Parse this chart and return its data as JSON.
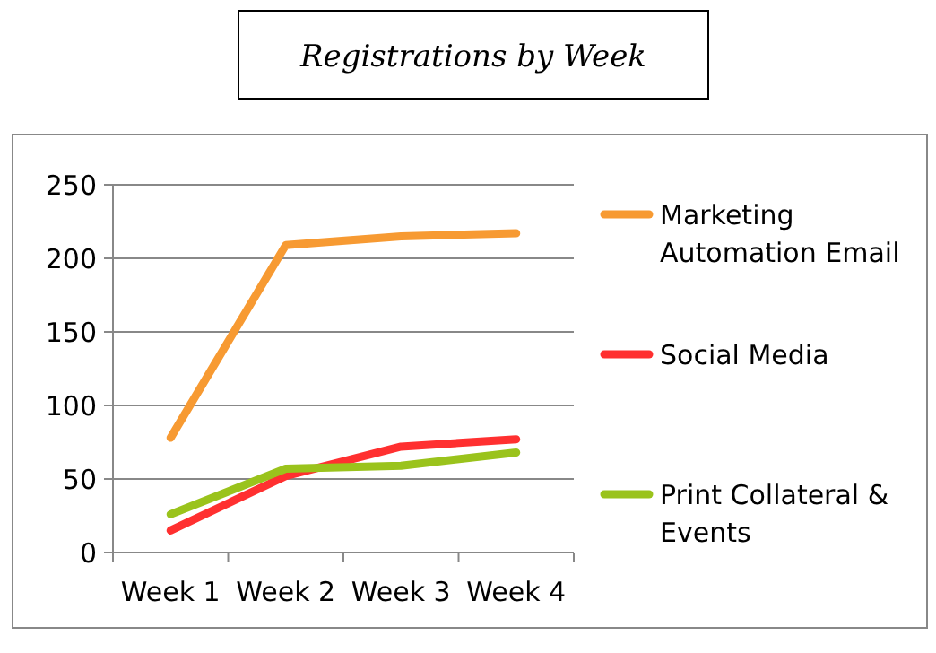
{
  "chart_data": {
    "type": "line",
    "title": "Registrations by Week",
    "categories": [
      "Week 1",
      "Week 2",
      "Week 3",
      "Week 4"
    ],
    "series": [
      {
        "name": "Marketing Automation Email",
        "color": "#f79a32",
        "values": [
          78,
          209,
          215,
          217
        ]
      },
      {
        "name": "Social Media",
        "color": "#ff3030",
        "values": [
          15,
          52,
          72,
          77
        ]
      },
      {
        "name": "Print Collateral & Events",
        "color": "#9ac31c",
        "values": [
          26,
          57,
          59,
          68
        ]
      }
    ],
    "ylim": [
      0,
      250
    ],
    "yticks": [
      0,
      50,
      100,
      150,
      200,
      250
    ],
    "grid": "y",
    "legend": "right",
    "marker": "none",
    "line_style": "solid"
  }
}
